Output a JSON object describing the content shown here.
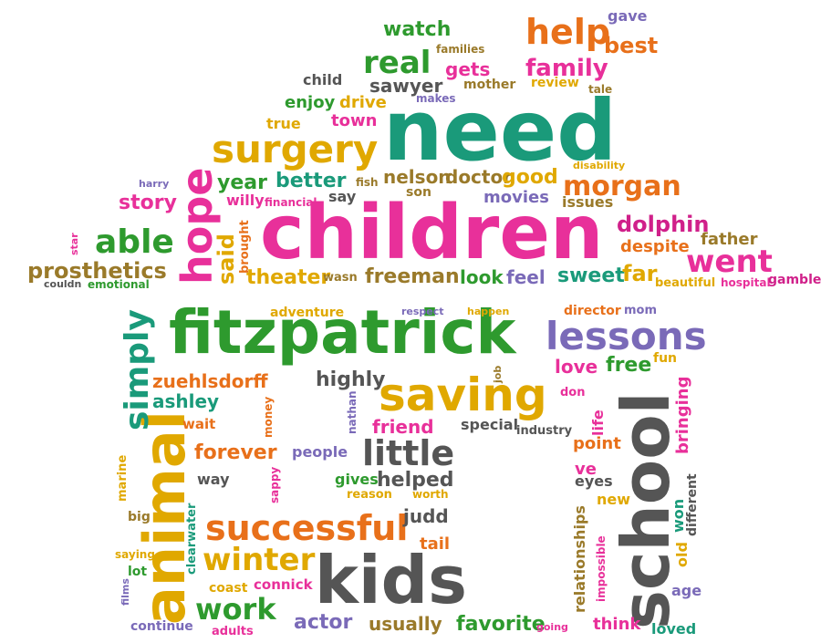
{
  "words": {
    "need": "need",
    "children": "children",
    "fitzpatrick": "fitzpatrick",
    "school": "school",
    "animal": "animal",
    "kids": "kids",
    "saving": "saving",
    "successful": "successful",
    "surgery": "surgery",
    "hope": "hope",
    "lessons": "lessons",
    "simply": "simply",
    "little": "little",
    "winter": "winter",
    "work": "work",
    "help": "help",
    "real": "real",
    "morgan": "morgan",
    "able": "able",
    "went": "went",
    "dolphin": "dolphin",
    "prosthetics": "prosthetics",
    "family": "family",
    "watch": "watch",
    "best": "best",
    "gave": "gave",
    "gets": "gets",
    "sawyer": "sawyer",
    "mother": "mother",
    "review": "review",
    "tale": "tale",
    "families": "families",
    "child": "child",
    "enjoy": "enjoy",
    "drive": "drive",
    "makes": "makes",
    "true": "true",
    "town": "town",
    "year": "year",
    "better": "better",
    "fish": "fish",
    "nelson": "nelson",
    "doctor": "doctor",
    "good": "good",
    "son": "son",
    "disability": "disability",
    "harry": "harry",
    "story": "story",
    "willy": "willy",
    "financial": "financial",
    "say": "say",
    "movies": "movies",
    "issues": "issues",
    "star": "star",
    "said": "said",
    "brought": "brought",
    "father": "father",
    "despite": "despite",
    "theater": "theater",
    "wasn": "wasn",
    "freeman": "freeman",
    "look": "look",
    "feel": "feel",
    "sweet": "sweet",
    "far": "far",
    "beautiful": "beautiful",
    "hospital": "hospital",
    "gamble": "gamble",
    "couldn": "couldn",
    "emotional": "emotional",
    "adventure": "adventure",
    "respect": "respect",
    "happen": "happen",
    "director": "director",
    "mom": "mom",
    "zuehlsdorff": "zuehlsdorff",
    "highly": "highly",
    "job": "job",
    "love": "love",
    "free": "free",
    "fun": "fun",
    "ashley": "ashley",
    "nathan": "nathan",
    "don": "don",
    "bringing": "bringing",
    "life": "life",
    "wait": "wait",
    "money": "money",
    "friend": "friend",
    "special": "special",
    "industry": "industry",
    "point": "point",
    "forever": "forever",
    "people": "people",
    "way": "way",
    "sappy": "sappy",
    "gives": "gives",
    "helped": "helped",
    "reason": "reason",
    "worth": "worth",
    "ve": "ve",
    "eyes": "eyes",
    "new": "new",
    "different": "different",
    "won": "won",
    "marine": "marine",
    "big": "big",
    "clearwater": "clearwater",
    "judd": "judd",
    "relationships": "relationships",
    "impossible": "impossible",
    "saying": "saying",
    "lot": "lot",
    "tail": "tail",
    "old": "old",
    "coast": "coast",
    "connick": "connick",
    "films": "films",
    "age": "age",
    "continue": "continue",
    "adults": "adults",
    "actor": "actor",
    "usually": "usually",
    "favorite": "favorite",
    "going": "going",
    "think": "think",
    "loved": "loved"
  },
  "palette": {
    "green": "#2e9a2e",
    "teal": "#1a9a7a",
    "pink": "#e8309a",
    "orange": "#e8701a",
    "gold": "#e0a800",
    "purple": "#7a6ab8",
    "brown": "#9a7a2a",
    "gray": "#555555",
    "magenta": "#d0208a"
  }
}
